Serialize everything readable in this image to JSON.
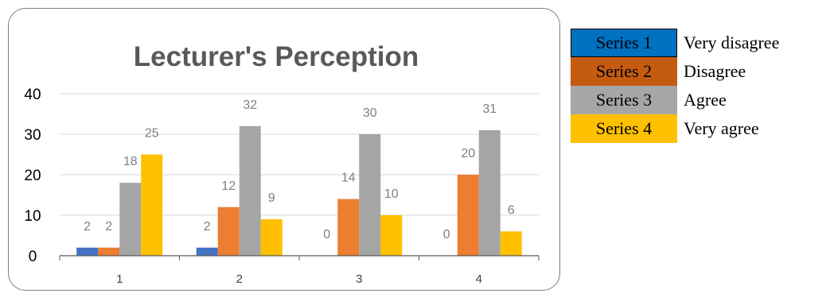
{
  "chart_data": {
    "type": "bar",
    "title": "Lecturer's Perception",
    "categories": [
      "1",
      "2",
      "3",
      "4"
    ],
    "series": [
      {
        "name": "Series 1",
        "color": "#4472c4",
        "values": [
          2,
          2,
          0,
          0
        ]
      },
      {
        "name": "Series 2",
        "color": "#ed7d31",
        "values": [
          2,
          12,
          14,
          20
        ]
      },
      {
        "name": "Series 3",
        "color": "#a5a5a5",
        "values": [
          18,
          32,
          30,
          31
        ]
      },
      {
        "name": "Series 4",
        "color": "#ffc000",
        "values": [
          25,
          9,
          10,
          6
        ]
      }
    ],
    "ylim": [
      0,
      40
    ],
    "yticks": [
      0,
      10,
      20,
      30,
      40
    ],
    "grid": true,
    "data_labels": true,
    "xlabel": "",
    "ylabel": ""
  },
  "legend": {
    "items": [
      {
        "series_label": "Series 1",
        "meaning": "Very disagree",
        "color": "#0070c0"
      },
      {
        "series_label": "Series 2",
        "meaning": "Disagree",
        "color": "#c55a11"
      },
      {
        "series_label": "Series 3",
        "meaning": "Agree",
        "color": "#a6a6a6"
      },
      {
        "series_label": "Series 4",
        "meaning": "Very agree",
        "color": "#ffc000"
      }
    ]
  }
}
